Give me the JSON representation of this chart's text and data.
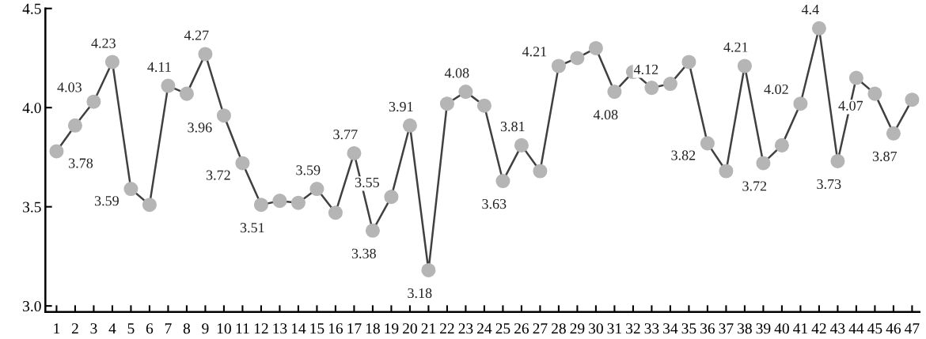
{
  "chart_data": {
    "type": "line",
    "categories": [
      "1",
      "2",
      "3",
      "4",
      "5",
      "6",
      "7",
      "8",
      "9",
      "10",
      "11",
      "12",
      "13",
      "14",
      "15",
      "16",
      "17",
      "18",
      "19",
      "20",
      "21",
      "22",
      "23",
      "24",
      "25",
      "26",
      "27",
      "28",
      "29",
      "30",
      "31",
      "32",
      "33",
      "34",
      "35",
      "36",
      "37",
      "38",
      "39",
      "40",
      "41",
      "42",
      "43",
      "44",
      "45",
      "46",
      "47"
    ],
    "series": [
      {
        "color": "#404040",
        "values": [
          3.78,
          3.91,
          4.03,
          4.23,
          3.59,
          3.51,
          4.11,
          4.07,
          4.27,
          3.96,
          3.72,
          3.51,
          3.53,
          3.52,
          3.59,
          3.47,
          3.77,
          3.38,
          3.55,
          3.91,
          3.18,
          4.02,
          4.08,
          4.01,
          3.63,
          3.81,
          3.68,
          4.21,
          4.25,
          4.3,
          4.08,
          4.18,
          4.1,
          4.12,
          4.23,
          3.82,
          3.68,
          4.21,
          3.72,
          3.81,
          4.02,
          4.4,
          3.73,
          4.15,
          4.07,
          3.87,
          4.04
        ],
        "value_labels": [
          "3.78",
          null,
          "4.03",
          "4.23",
          "3.59",
          null,
          "4.11",
          null,
          "4.27",
          "3.96",
          "3.72",
          "3.51",
          null,
          null,
          "3.59",
          null,
          "3.77",
          "3.38",
          "3.55",
          "3.91",
          "3.18",
          null,
          "4.08",
          null,
          "3.63",
          "3.81",
          null,
          "4.21",
          null,
          null,
          "4.08",
          null,
          null,
          "4.12",
          null,
          "3.82",
          null,
          "4.21",
          "3.72",
          null,
          "4.02",
          "4.4",
          "3.73",
          null,
          "4.07",
          "3.87",
          null
        ]
      }
    ],
    "ylim": [
      2.97,
      4.5
    ],
    "yticks": [
      {
        "value": 3.0,
        "label": "3.0"
      },
      {
        "value": 3.5,
        "label": "3.5"
      },
      {
        "value": 4.0,
        "label": "4.0"
      },
      {
        "value": 4.5,
        "label": "4.5"
      }
    ],
    "marker": "circle",
    "line_style": "solid",
    "grid": false,
    "legend": false
  }
}
